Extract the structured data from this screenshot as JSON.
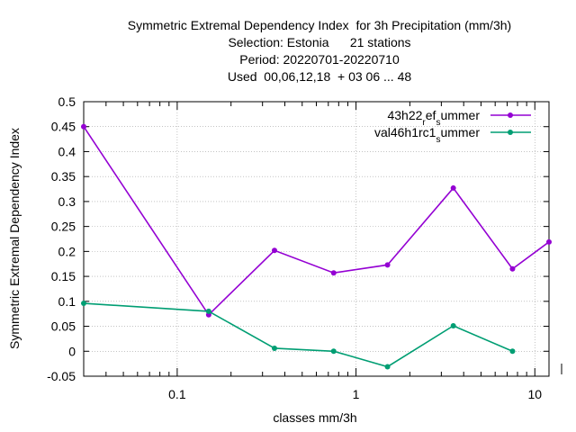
{
  "chart_data": {
    "type": "line",
    "title_lines": [
      "Symmetric Extremal Dependency Index  for 3h Precipitation (mm/3h)",
      "Selection: Estonia      21 stations",
      "Period: 20220701-20220710",
      "Used  00,06,12,18  + 03 06 ... 48"
    ],
    "xlabel": "classes mm/3h",
    "ylabel": "Symmetric Extremal Dependency Index",
    "x_scale": "log",
    "xlim": [
      0.03,
      12
    ],
    "ylim": [
      -0.05,
      0.5
    ],
    "y_ticks": [
      -0.05,
      0,
      0.05,
      0.1,
      0.15,
      0.2,
      0.25,
      0.3,
      0.35,
      0.4,
      0.45,
      0.5
    ],
    "y_tick_labels": [
      "-0.05",
      "0",
      "0.05",
      "0.1",
      "0.15",
      "0.2",
      "0.25",
      "0.3",
      "0.35",
      "0.4",
      "0.45",
      "0.5"
    ],
    "x_major_ticks": [
      0.1,
      1,
      10
    ],
    "x_major_tick_labels": [
      "0.1",
      "1",
      "10"
    ],
    "x_minor_ticks": [
      0.04,
      0.05,
      0.06,
      0.07,
      0.08,
      0.09,
      0.2,
      0.3,
      0.4,
      0.5,
      0.6,
      0.7,
      0.8,
      0.9,
      2,
      3,
      4,
      5,
      6,
      7,
      8,
      9
    ],
    "grid": true,
    "legend_position": "top-right",
    "series": [
      {
        "name_main": "43h22",
        "name_sub1": "r",
        "name_mid": "ef",
        "name_sub2": "s",
        "name_end": "ummer",
        "color": "#9400d3",
        "x": [
          0.03,
          0.15,
          0.35,
          0.75,
          1.5,
          3.5,
          7.5,
          12
        ],
        "y": [
          0.45,
          0.073,
          0.202,
          0.157,
          0.173,
          0.327,
          0.165,
          0.219
        ]
      },
      {
        "name_main": "val46h1rc1",
        "name_sub1": "",
        "name_mid": "",
        "name_sub2": "s",
        "name_end": "ummer",
        "color": "#009e73",
        "x": [
          0.03,
          0.15,
          0.35,
          0.75,
          1.5,
          3.5,
          7.5
        ],
        "y": [
          0.096,
          0.08,
          0.006,
          0.0,
          -0.031,
          0.051,
          0.0
        ]
      }
    ]
  }
}
